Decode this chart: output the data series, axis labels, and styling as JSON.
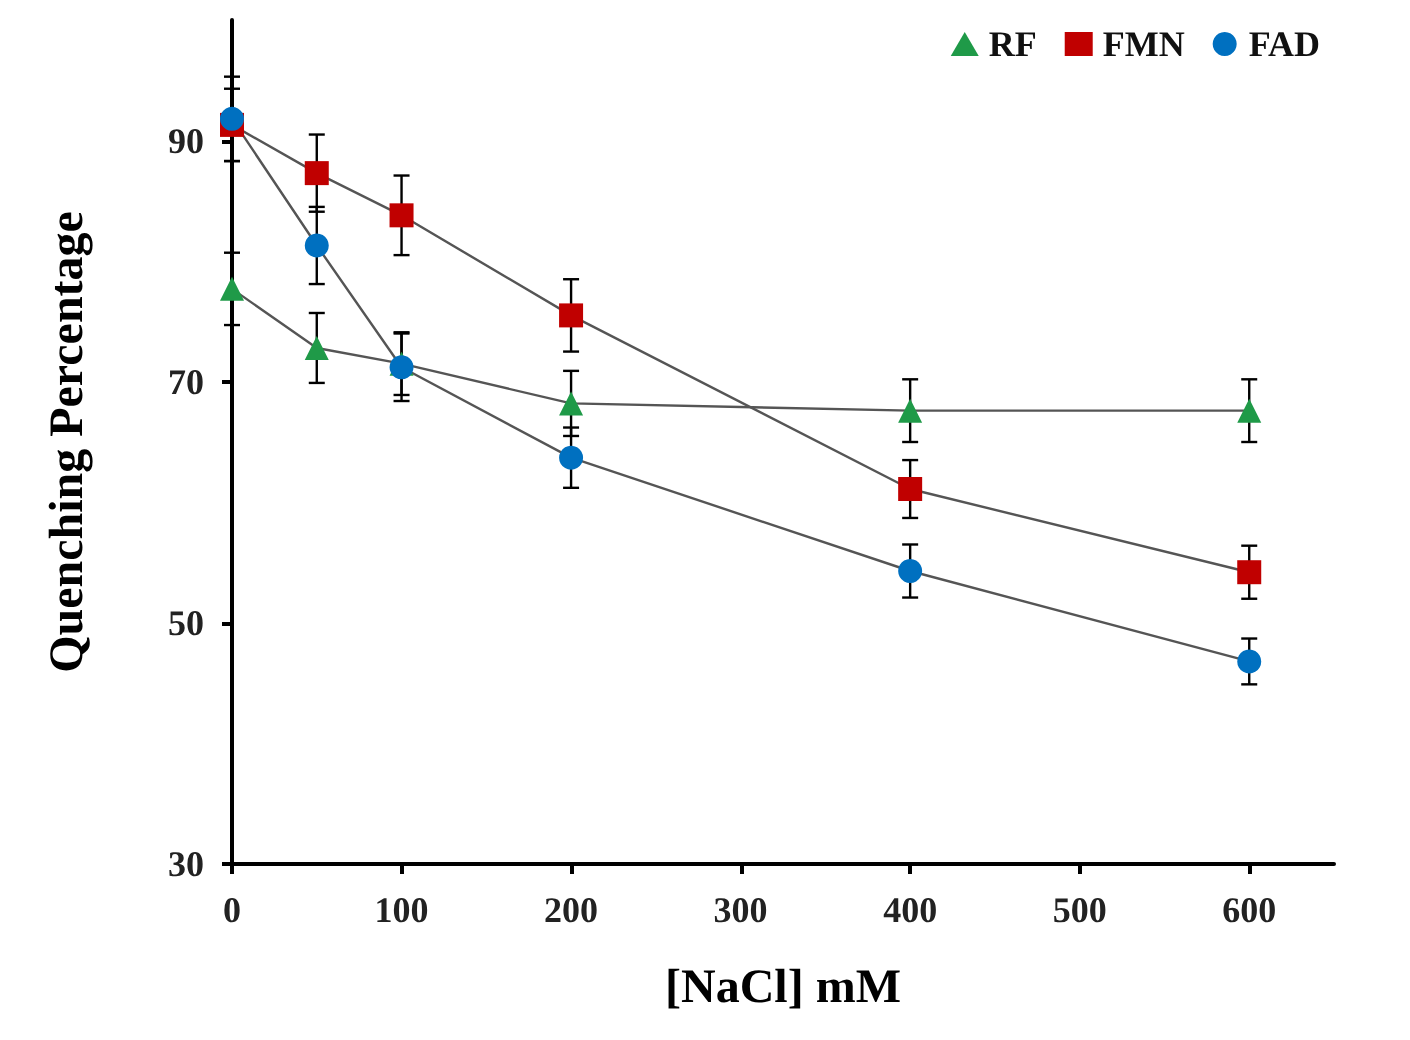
{
  "chart_data": {
    "type": "line",
    "xlabel": "[NaCl] mM",
    "ylabel": "Quenching Percentage",
    "xlim": [
      0,
      650
    ],
    "xticks": [
      0,
      100,
      200,
      300,
      400,
      500,
      600
    ],
    "ylim": [
      30,
      100
    ],
    "yticks": [
      30,
      50,
      70,
      90
    ],
    "grid": false,
    "legend": "top right",
    "series": [
      {
        "name": "RF",
        "color": "#1f9a48",
        "marker": "triangle",
        "x": [
          0,
          50,
          100,
          200,
          400,
          600
        ],
        "values": [
          77.7,
          72.8,
          71.5,
          68.2,
          67.6,
          67.6
        ],
        "errors": [
          3,
          2.9,
          2.6,
          2.7,
          2.6,
          2.6
        ]
      },
      {
        "name": "FMN",
        "color": "#c00000",
        "marker": "square",
        "x": [
          0,
          50,
          100,
          200,
          400,
          600
        ],
        "values": [
          91.3,
          87.3,
          83.8,
          75.5,
          61.1,
          54.2
        ],
        "errors": [
          3,
          3.2,
          3.3,
          3,
          2.4,
          2.2
        ]
      },
      {
        "name": "FAD",
        "color": "#0070c0",
        "marker": "circle",
        "x": [
          0,
          50,
          100,
          200,
          400,
          600
        ],
        "values": [
          91.8,
          81.3,
          71.2,
          63.7,
          54.3,
          46.8
        ],
        "errors": [
          3.5,
          3.2,
          2.8,
          2.5,
          2.2,
          1.9
        ]
      }
    ]
  }
}
